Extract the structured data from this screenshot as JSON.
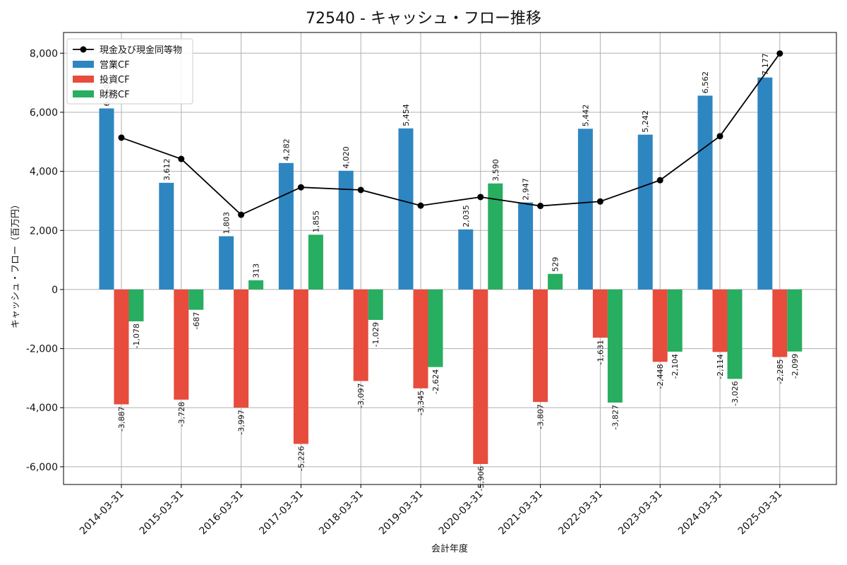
{
  "chart_data": {
    "type": "bar",
    "title": "72540 - キャッシュ・フロー推移",
    "xlabel": "会計年度",
    "ylabel": "キャッシュ・フロー（百万円）",
    "ylim": [
      -6600,
      8700
    ],
    "yticks": [
      -6000,
      -4000,
      -2000,
      0,
      2000,
      4000,
      6000,
      8000
    ],
    "ytick_labels": [
      "-6,000",
      "-4,000",
      "-2,000",
      "0",
      "2,000",
      "4,000",
      "6,000",
      "8,000"
    ],
    "grid": true,
    "legend_position": "top-left",
    "categories": [
      "2014-03-31",
      "2015-03-31",
      "2016-03-31",
      "2017-03-31",
      "2018-03-31",
      "2019-03-31",
      "2020-03-31",
      "2021-03-31",
      "2022-03-31",
      "2023-03-31",
      "2024-03-31",
      "2025-03-31"
    ],
    "series": [
      {
        "name": "営業CF",
        "kind": "bar",
        "color": "#2e86c1",
        "values": [
          6130,
          3612,
          1803,
          4282,
          4020,
          5454,
          2035,
          2947,
          5442,
          5242,
          6562,
          7177
        ],
        "labels": [
          "6,130",
          "3,612",
          "1,803",
          "4,282",
          "4,020",
          "5,454",
          "2,035",
          "2,947",
          "5,442",
          "5,242",
          "6,562",
          "7,177"
        ]
      },
      {
        "name": "投資CF",
        "kind": "bar",
        "color": "#e74c3c",
        "values": [
          -3887,
          -3728,
          -3997,
          -5226,
          -3097,
          -3345,
          -5906,
          -3807,
          -1631,
          -2448,
          -2114,
          -2285
        ],
        "labels": [
          "-3,887",
          "-3,728",
          "-3,997",
          "-5,226",
          "-3,097",
          "-3,345",
          "-5,906",
          "-3,807",
          "-1,631",
          "-2,448",
          "-2,114",
          "-2,285"
        ]
      },
      {
        "name": "財務CF",
        "kind": "bar",
        "color": "#27ae60",
        "values": [
          -1078,
          -687,
          313,
          1855,
          -1029,
          -2624,
          3590,
          529,
          -3827,
          -2104,
          -3026,
          -2099
        ],
        "labels": [
          "-1,078",
          "-687",
          "313",
          "1,855",
          "-1,029",
          "-2,624",
          "3,590",
          "529",
          "-3,827",
          "-2,104",
          "-3,026",
          "-2,099"
        ]
      },
      {
        "name": "現金及び現金同等物",
        "kind": "line",
        "color": "#000000",
        "values": [
          5140,
          4420,
          2530,
          3460,
          3370,
          2840,
          3130,
          2830,
          2980,
          3700,
          5190,
          7990
        ]
      }
    ]
  }
}
